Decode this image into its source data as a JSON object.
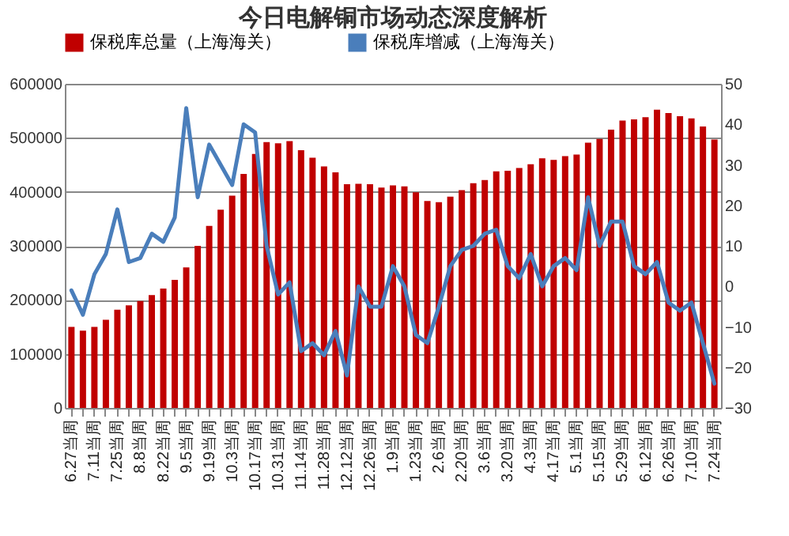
{
  "chart_data": {
    "type": "bar",
    "title": "今日电解铜市场动态深度解析",
    "categories": [
      "6.27当周",
      null,
      "7.11当周",
      null,
      "7.25当周",
      null,
      "8.8当周",
      null,
      "8.22当周",
      null,
      "9.5当周",
      null,
      "9.19当周",
      null,
      "10.3当周",
      null,
      "10.17当周",
      null,
      "10.31当周",
      null,
      "11.14当周",
      null,
      "11.28当周",
      null,
      "12.12当周",
      null,
      "12.26当周",
      null,
      "1.9当周",
      null,
      "1.23当周",
      null,
      "2.6当周",
      null,
      "2.20当周",
      null,
      "3.6当周",
      null,
      "3.20当周",
      null,
      "4.3当周",
      null,
      "4.17当周",
      null,
      "5.1当周",
      null,
      "5.15当周",
      null,
      "5.29当周",
      null,
      "6.12当周",
      null,
      "6.26当周",
      null,
      "7.10当周",
      null,
      "7.24当周"
    ],
    "series": [
      {
        "name": "保税库总量（上海海关）",
        "color": "#c00000",
        "values": [
          150000,
          143000,
          150000,
          163000,
          182000,
          190000,
          198000,
          209000,
          221000,
          237000,
          260000,
          300000,
          337000,
          367000,
          393000,
          433000,
          470000,
          492000,
          490000,
          494000,
          477000,
          463000,
          447000,
          436000,
          414000,
          415000,
          414000,
          408000,
          412000,
          410000,
          399000,
          383000,
          381000,
          391000,
          403000,
          416000,
          422000,
          438000,
          439000,
          444000,
          451000,
          462000,
          459000,
          466000,
          469000,
          491000,
          498000,
          515000,
          532000,
          534000,
          538000,
          552000,
          546000,
          540000,
          536000,
          521000,
          497000
        ]
      },
      {
        "name": "保税库增减（上海海关）",
        "type": "line",
        "axis": "y2",
        "color": "#4a7ebb",
        "values": [
          -1,
          -7,
          3,
          8,
          19,
          6,
          7,
          13,
          11,
          17,
          44,
          22,
          35,
          30,
          25,
          40,
          38,
          10,
          -2,
          1,
          -16,
          -14,
          -17,
          -11,
          -22,
          0,
          -5,
          -5,
          5,
          0,
          -12,
          -14,
          -5,
          5,
          9,
          10,
          13,
          14,
          5,
          2,
          8,
          0,
          5,
          7,
          4,
          22,
          10,
          16,
          16,
          5,
          3,
          6,
          -4,
          -6,
          -4,
          -14,
          -24
        ]
      }
    ],
    "ylim": [
      0,
      600000
    ],
    "yticks": [
      0,
      100000,
      200000,
      300000,
      400000,
      500000,
      600000
    ],
    "y2lim": [
      -30,
      50
    ],
    "y2ticks": [
      -30,
      -20,
      -10,
      0,
      10,
      20,
      30,
      40,
      50
    ],
    "grid": "y",
    "legend": "top"
  }
}
